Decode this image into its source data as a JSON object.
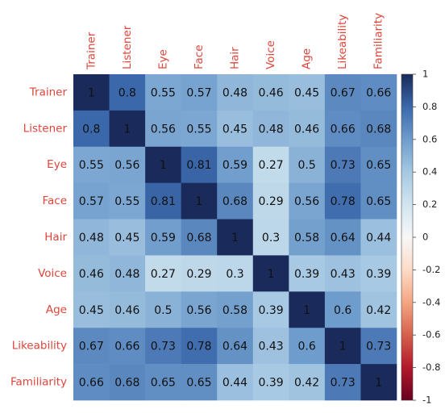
{
  "chart_data": {
    "type": "heatmap",
    "categories": [
      "Trainer",
      "Listener",
      "Eye",
      "Face",
      "Hair",
      "Voice",
      "Age",
      "Likeability",
      "Familiarity"
    ],
    "values": [
      [
        1,
        0.8,
        0.55,
        0.57,
        0.48,
        0.46,
        0.45,
        0.67,
        0.66
      ],
      [
        0.8,
        1,
        0.56,
        0.55,
        0.45,
        0.48,
        0.46,
        0.66,
        0.68
      ],
      [
        0.55,
        0.56,
        1,
        0.81,
        0.59,
        0.27,
        0.5,
        0.73,
        0.65
      ],
      [
        0.57,
        0.55,
        0.81,
        1,
        0.68,
        0.29,
        0.56,
        0.78,
        0.65
      ],
      [
        0.48,
        0.45,
        0.59,
        0.68,
        1,
        0.3,
        0.58,
        0.64,
        0.44
      ],
      [
        0.46,
        0.48,
        0.27,
        0.29,
        0.3,
        1,
        0.39,
        0.43,
        0.39
      ],
      [
        0.45,
        0.46,
        0.5,
        0.56,
        0.58,
        0.39,
        1,
        0.6,
        0.42
      ],
      [
        0.67,
        0.66,
        0.73,
        0.78,
        0.64,
        0.43,
        0.6,
        1,
        0.73
      ],
      [
        0.66,
        0.68,
        0.65,
        0.65,
        0.44,
        0.39,
        0.42,
        0.73,
        1
      ]
    ],
    "colormap": "RdBu",
    "clim": [
      -1,
      1
    ],
    "cticks": [
      1,
      0.8,
      0.6,
      0.4,
      0.2,
      0,
      -0.2,
      -0.4,
      -0.6,
      -0.8,
      -1
    ]
  }
}
